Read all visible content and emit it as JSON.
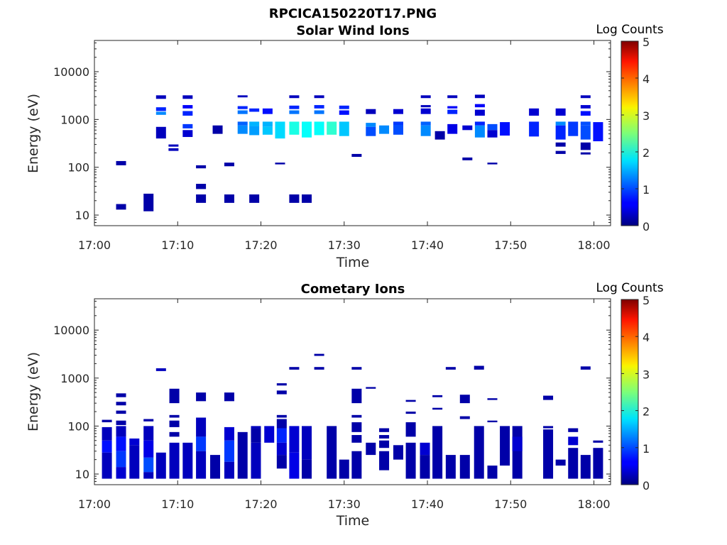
{
  "figure": {
    "title": "RPCICA150220T17.PNG"
  },
  "chart_data": [
    {
      "type": "heatmap",
      "title": "Solar Wind Ions",
      "xlabel": "Time",
      "ylabel": "Energy (eV)",
      "x_ticks": [
        "17:00",
        "17:10",
        "17:20",
        "17:30",
        "17:40",
        "17:50",
        "18:00"
      ],
      "y_ticks": [
        "10",
        "100",
        "1000",
        "10000"
      ],
      "y_scale": "log",
      "ylim": [
        6,
        45000
      ],
      "xlim_minutes": [
        0,
        62
      ],
      "colorbar": {
        "label": "Log Counts",
        "ticks": [
          "0",
          "1",
          "2",
          "3",
          "4",
          "5"
        ],
        "range": [
          0,
          5
        ],
        "colormap": "jet"
      },
      "cells": [
        [
          3.2,
          110,
          135,
          0.2
        ],
        [
          3.2,
          13,
          17,
          0.2
        ],
        [
          6.5,
          12,
          28,
          0.2
        ],
        [
          8.0,
          2700,
          3200,
          0.3
        ],
        [
          8.0,
          1500,
          1800,
          0.8
        ],
        [
          8.0,
          1250,
          1450,
          1.3
        ],
        [
          8.0,
          400,
          700,
          0.3
        ],
        [
          9.5,
          270,
          300,
          0.3
        ],
        [
          9.5,
          220,
          250,
          0.3
        ],
        [
          11.2,
          2700,
          3200,
          0.3
        ],
        [
          11.2,
          1700,
          2000,
          0.6
        ],
        [
          11.2,
          1200,
          1500,
          0.8
        ],
        [
          11.2,
          650,
          800,
          0.9
        ],
        [
          11.2,
          430,
          600,
          0.4
        ],
        [
          12.8,
          95,
          110,
          0.2
        ],
        [
          12.8,
          35,
          45,
          0.2
        ],
        [
          12.8,
          18,
          27,
          0.2
        ],
        [
          14.8,
          500,
          750,
          0.2
        ],
        [
          16.2,
          105,
          125,
          0.2
        ],
        [
          16.2,
          18,
          27,
          0.2
        ],
        [
          17.8,
          2900,
          3200,
          0.3
        ],
        [
          17.8,
          1650,
          1900,
          0.8
        ],
        [
          17.8,
          1300,
          1550,
          1.2
        ],
        [
          17.8,
          750,
          900,
          1.1
        ],
        [
          17.8,
          500,
          750,
          1.3
        ],
        [
          19.2,
          1450,
          1700,
          0.8
        ],
        [
          19.2,
          720,
          900,
          1.5
        ],
        [
          19.2,
          470,
          720,
          1.4
        ],
        [
          19.2,
          18,
          27,
          0.2
        ],
        [
          20.8,
          1300,
          1700,
          0.7
        ],
        [
          20.8,
          700,
          900,
          1.5
        ],
        [
          20.8,
          480,
          700,
          1.6
        ],
        [
          22.3,
          400,
          900,
          1.7
        ],
        [
          22.3,
          115,
          125,
          0.2
        ],
        [
          24.0,
          2800,
          3200,
          0.3
        ],
        [
          24.0,
          1650,
          1950,
          0.8
        ],
        [
          24.0,
          1300,
          1550,
          1.2
        ],
        [
          24.0,
          480,
          900,
          2.0
        ],
        [
          24.0,
          18,
          27,
          0.2
        ],
        [
          25.5,
          420,
          900,
          1.9
        ],
        [
          25.5,
          18,
          27,
          0.2
        ],
        [
          27.0,
          2800,
          3200,
          0.3
        ],
        [
          27.0,
          1700,
          2000,
          0.8
        ],
        [
          27.0,
          1300,
          1550,
          1.2
        ],
        [
          27.0,
          470,
          900,
          1.9
        ],
        [
          28.5,
          480,
          900,
          2.1
        ],
        [
          30.0,
          1650,
          1950,
          0.8
        ],
        [
          30.0,
          1250,
          1550,
          0.7
        ],
        [
          30.0,
          450,
          900,
          1.6
        ],
        [
          31.5,
          165,
          190,
          0.2
        ],
        [
          33.2,
          1300,
          1650,
          0.3
        ],
        [
          33.2,
          700,
          850,
          1.3
        ],
        [
          33.2,
          450,
          700,
          1.0
        ],
        [
          34.8,
          500,
          750,
          1.3
        ],
        [
          36.5,
          1300,
          1650,
          0.4
        ],
        [
          36.5,
          770,
          900,
          0.9
        ],
        [
          36.5,
          480,
          770,
          1.0
        ],
        [
          39.8,
          2800,
          3200,
          0.3
        ],
        [
          39.8,
          1800,
          2000,
          0.3
        ],
        [
          39.8,
          1300,
          1700,
          0.4
        ],
        [
          39.8,
          750,
          900,
          1.1
        ],
        [
          39.8,
          450,
          750,
          1.3
        ],
        [
          41.5,
          380,
          570,
          0.2
        ],
        [
          43.0,
          2800,
          3200,
          0.3
        ],
        [
          43.0,
          1700,
          1900,
          0.6
        ],
        [
          43.0,
          1300,
          1600,
          0.8
        ],
        [
          43.0,
          500,
          800,
          0.5
        ],
        [
          44.8,
          600,
          750,
          0.4
        ],
        [
          44.8,
          140,
          160,
          0.2
        ],
        [
          46.3,
          2800,
          3300,
          0.3
        ],
        [
          46.3,
          1800,
          2100,
          0.6
        ],
        [
          46.3,
          1200,
          1600,
          0.4
        ],
        [
          46.3,
          750,
          900,
          0.8
        ],
        [
          46.3,
          420,
          750,
          1.3
        ],
        [
          47.8,
          600,
          800,
          1.0
        ],
        [
          47.8,
          420,
          600,
          0.4
        ],
        [
          47.8,
          115,
          125,
          0.2
        ],
        [
          49.3,
          460,
          880,
          0.7
        ],
        [
          52.8,
          1200,
          1700,
          0.4
        ],
        [
          52.8,
          440,
          900,
          0.8
        ],
        [
          56.0,
          1200,
          1700,
          0.4
        ],
        [
          56.0,
          750,
          900,
          1.3
        ],
        [
          56.0,
          380,
          750,
          0.8
        ],
        [
          56.0,
          270,
          330,
          0.2
        ],
        [
          56.0,
          190,
          220,
          0.2
        ],
        [
          57.5,
          450,
          900,
          0.9
        ],
        [
          59.0,
          2800,
          3200,
          0.3
        ],
        [
          59.0,
          1700,
          2000,
          0.4
        ],
        [
          59.0,
          1200,
          1500,
          0.7
        ],
        [
          59.0,
          750,
          900,
          1.0
        ],
        [
          59.0,
          380,
          750,
          1.0
        ],
        [
          59.0,
          230,
          330,
          0.2
        ],
        [
          59.0,
          185,
          205,
          0.2
        ],
        [
          60.5,
          350,
          880,
          0.7
        ]
      ]
    },
    {
      "type": "heatmap",
      "title": "Cometary Ions",
      "xlabel": "Time",
      "ylabel": "Energy (eV)",
      "x_ticks": [
        "17:00",
        "17:10",
        "17:20",
        "17:30",
        "17:40",
        "17:50",
        "18:00"
      ],
      "y_ticks": [
        "10",
        "100",
        "1000",
        "10000"
      ],
      "y_scale": "log",
      "ylim": [
        6,
        45000
      ],
      "xlim_minutes": [
        0,
        62
      ],
      "colorbar": {
        "label": "Log Counts",
        "ticks": [
          "0",
          "1",
          "2",
          "3",
          "4",
          "5"
        ],
        "range": [
          0,
          5
        ],
        "colormap": "jet"
      },
      "cells": [
        [
          1.5,
          120,
          135,
          0.2
        ],
        [
          1.5,
          50,
          95,
          0.3
        ],
        [
          1.5,
          28,
          50,
          0.7
        ],
        [
          1.5,
          8,
          28,
          0.3
        ],
        [
          3.2,
          400,
          480,
          0.2
        ],
        [
          3.2,
          270,
          320,
          0.2
        ],
        [
          3.2,
          180,
          210,
          0.2
        ],
        [
          3.2,
          105,
          130,
          0.2
        ],
        [
          3.2,
          60,
          100,
          0.3
        ],
        [
          3.2,
          30,
          60,
          0.7
        ],
        [
          3.2,
          14,
          30,
          0.9
        ],
        [
          3.2,
          8,
          14,
          0.4
        ],
        [
          4.8,
          40,
          55,
          0.4
        ],
        [
          4.8,
          8,
          40,
          0.3
        ],
        [
          6.5,
          125,
          140,
          0.2
        ],
        [
          6.5,
          50,
          100,
          0.3
        ],
        [
          6.5,
          22,
          50,
          0.5
        ],
        [
          6.5,
          11,
          22,
          1.0
        ],
        [
          6.5,
          8,
          11,
          0.3
        ],
        [
          8.0,
          1400,
          1600,
          0.3
        ],
        [
          8.0,
          8,
          28,
          0.3
        ],
        [
          9.6,
          300,
          600,
          0.2
        ],
        [
          9.6,
          150,
          170,
          0.2
        ],
        [
          9.6,
          95,
          130,
          0.2
        ],
        [
          9.6,
          60,
          75,
          0.2
        ],
        [
          9.6,
          8,
          45,
          0.3
        ],
        [
          11.2,
          8,
          45,
          0.3
        ],
        [
          12.8,
          330,
          500,
          0.2
        ],
        [
          12.8,
          60,
          150,
          0.3
        ],
        [
          12.8,
          30,
          60,
          0.9
        ],
        [
          12.8,
          8,
          30,
          0.3
        ],
        [
          14.5,
          8,
          25,
          0.2
        ],
        [
          16.2,
          330,
          500,
          0.2
        ],
        [
          16.2,
          50,
          95,
          0.4
        ],
        [
          16.2,
          18,
          50,
          0.9
        ],
        [
          16.2,
          8,
          18,
          0.3
        ],
        [
          17.8,
          8,
          75,
          0.2
        ],
        [
          19.4,
          90,
          100,
          0.3
        ],
        [
          19.4,
          45,
          90,
          0.2
        ],
        [
          19.4,
          8,
          45,
          0.3
        ],
        [
          21.0,
          45,
          100,
          0.4
        ],
        [
          22.5,
          700,
          780,
          0.2
        ],
        [
          22.5,
          460,
          550,
          0.2
        ],
        [
          22.5,
          150,
          170,
          0.2
        ],
        [
          22.5,
          90,
          140,
          0.2
        ],
        [
          22.5,
          45,
          90,
          0.8
        ],
        [
          22.5,
          25,
          45,
          0.4
        ],
        [
          22.5,
          13,
          25,
          0.2
        ],
        [
          24.0,
          1500,
          1700,
          0.2
        ],
        [
          24.0,
          28,
          100,
          0.4
        ],
        [
          24.0,
          8,
          28,
          0.5
        ],
        [
          25.5,
          20,
          100,
          0.3
        ],
        [
          25.5,
          8,
          20,
          0.2
        ],
        [
          27.0,
          2900,
          3200,
          0.2
        ],
        [
          27.0,
          1500,
          1700,
          0.2
        ],
        [
          28.5,
          8,
          100,
          0.2
        ],
        [
          30.0,
          8,
          20,
          0.2
        ],
        [
          31.5,
          1500,
          1700,
          0.2
        ],
        [
          31.5,
          300,
          600,
          0.2
        ],
        [
          31.5,
          150,
          170,
          0.2
        ],
        [
          31.5,
          75,
          120,
          0.2
        ],
        [
          31.5,
          45,
          65,
          0.2
        ],
        [
          31.5,
          8,
          30,
          0.2
        ],
        [
          33.2,
          600,
          650,
          0.2
        ],
        [
          33.2,
          25,
          45,
          0.2
        ],
        [
          34.8,
          75,
          90,
          0.2
        ],
        [
          34.8,
          55,
          65,
          0.2
        ],
        [
          34.8,
          35,
          50,
          0.2
        ],
        [
          34.8,
          12,
          30,
          0.2
        ],
        [
          36.5,
          20,
          40,
          0.2
        ],
        [
          38.0,
          320,
          350,
          0.2
        ],
        [
          38.0,
          180,
          200,
          0.2
        ],
        [
          38.0,
          60,
          120,
          0.2
        ],
        [
          38.0,
          8,
          45,
          0.2
        ],
        [
          39.7,
          25,
          45,
          0.4
        ],
        [
          39.7,
          8,
          25,
          0.2
        ],
        [
          41.2,
          400,
          440,
          0.2
        ],
        [
          41.2,
          220,
          240,
          0.2
        ],
        [
          41.2,
          8,
          100,
          0.2
        ],
        [
          42.8,
          1500,
          1700,
          0.2
        ],
        [
          42.8,
          8,
          25,
          0.2
        ],
        [
          44.5,
          300,
          450,
          0.2
        ],
        [
          44.5,
          140,
          160,
          0.2
        ],
        [
          44.5,
          8,
          25,
          0.2
        ],
        [
          46.2,
          1500,
          1800,
          0.2
        ],
        [
          46.2,
          8,
          100,
          0.2
        ],
        [
          47.8,
          350,
          380,
          0.2
        ],
        [
          47.8,
          120,
          130,
          0.2
        ],
        [
          47.8,
          8,
          15,
          0.2
        ],
        [
          49.3,
          15,
          100,
          0.2
        ],
        [
          50.8,
          8,
          100,
          0.2
        ],
        [
          50.8,
          30,
          60,
          0.4
        ],
        [
          54.5,
          350,
          430,
          0.2
        ],
        [
          54.5,
          90,
          100,
          0.2
        ],
        [
          54.5,
          8,
          85,
          0.2
        ],
        [
          56.0,
          15,
          20,
          0.2
        ],
        [
          57.5,
          75,
          90,
          0.2
        ],
        [
          57.5,
          40,
          60,
          0.4
        ],
        [
          57.5,
          8,
          35,
          0.2
        ],
        [
          59.0,
          1500,
          1750,
          0.2
        ],
        [
          59.0,
          8,
          25,
          0.2
        ],
        [
          60.5,
          45,
          50,
          0.2
        ],
        [
          60.5,
          8,
          35,
          0.2
        ]
      ]
    }
  ]
}
